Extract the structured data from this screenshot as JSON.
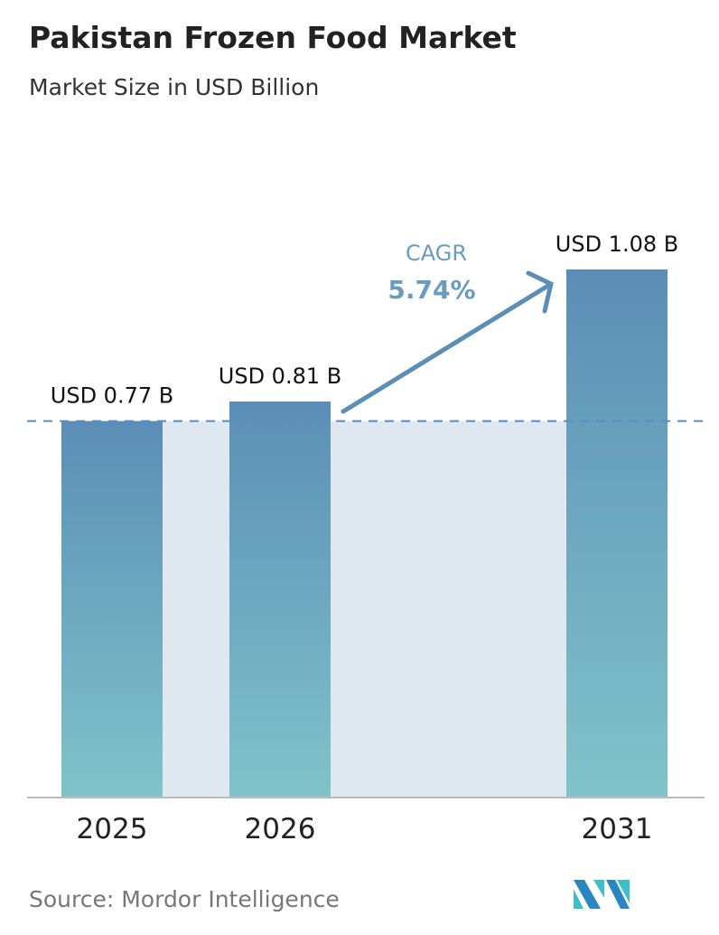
{
  "title": "Pakistan Frozen Food Market",
  "subtitle": "Market Size in USD Billion",
  "source": "Source:  Mordor Intelligence",
  "cagr": {
    "label": "CAGR",
    "value": "5.74%"
  },
  "colors": {
    "bar_top": "#5b8eb7",
    "bar_bottom": "#80c3c9",
    "shade": "#dfe8f0",
    "accent": "#6a9cc0"
  },
  "chart_data": {
    "type": "bar",
    "categories": [
      "2025",
      "2026",
      "2031"
    ],
    "values": [
      0.77,
      0.81,
      1.08
    ],
    "data_labels": [
      "USD 0.77 B",
      "USD 0.81 B",
      "USD 1.08 B"
    ],
    "title": "Pakistan Frozen Food Market",
    "ylabel": "Market Size in USD Billion",
    "ylim": [
      0,
      1.08
    ],
    "grid": false
  }
}
